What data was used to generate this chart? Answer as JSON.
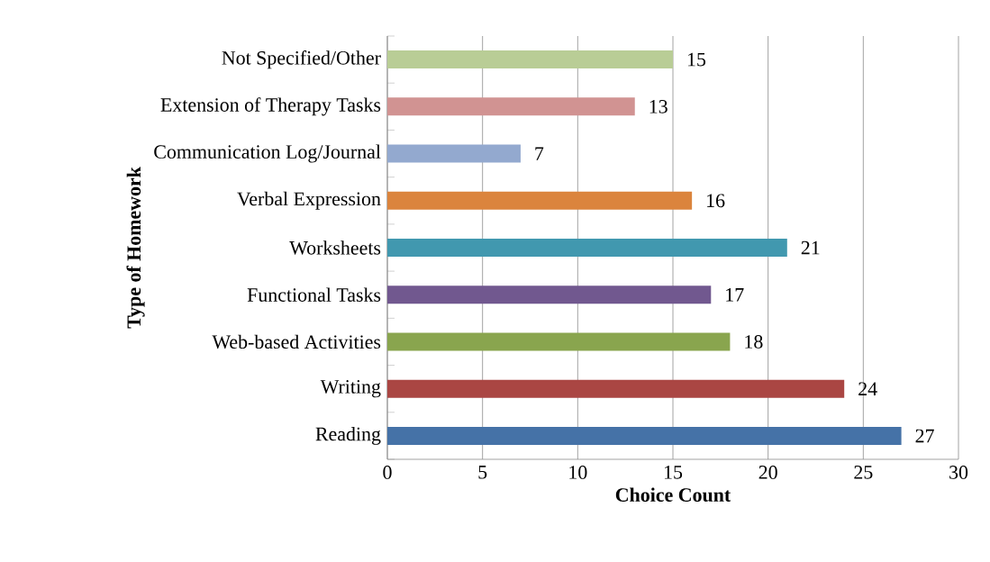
{
  "chart_data": {
    "type": "bar",
    "orientation": "horizontal",
    "xlabel": "Choice Count",
    "ylabel": "Type of Homework",
    "categories": [
      "Not Specified/Other",
      "Extension of Therapy Tasks",
      "Communication Log/Journal",
      "Verbal Expression",
      "Worksheets",
      "Functional Tasks",
      "Web-based Activities",
      "Writing",
      "Reading"
    ],
    "values": [
      15,
      13,
      7,
      16,
      21,
      17,
      18,
      24,
      27
    ],
    "colors": [
      "#b9cd96",
      "#d19392",
      "#93a9cf",
      "#db843d",
      "#4198af",
      "#71588f",
      "#89a54e",
      "#aa4643",
      "#4572a7"
    ],
    "xlim": [
      0,
      30
    ],
    "xticks": [
      0,
      5,
      10,
      15,
      20,
      25,
      30
    ],
    "grid": "x",
    "data_labels": true
  }
}
